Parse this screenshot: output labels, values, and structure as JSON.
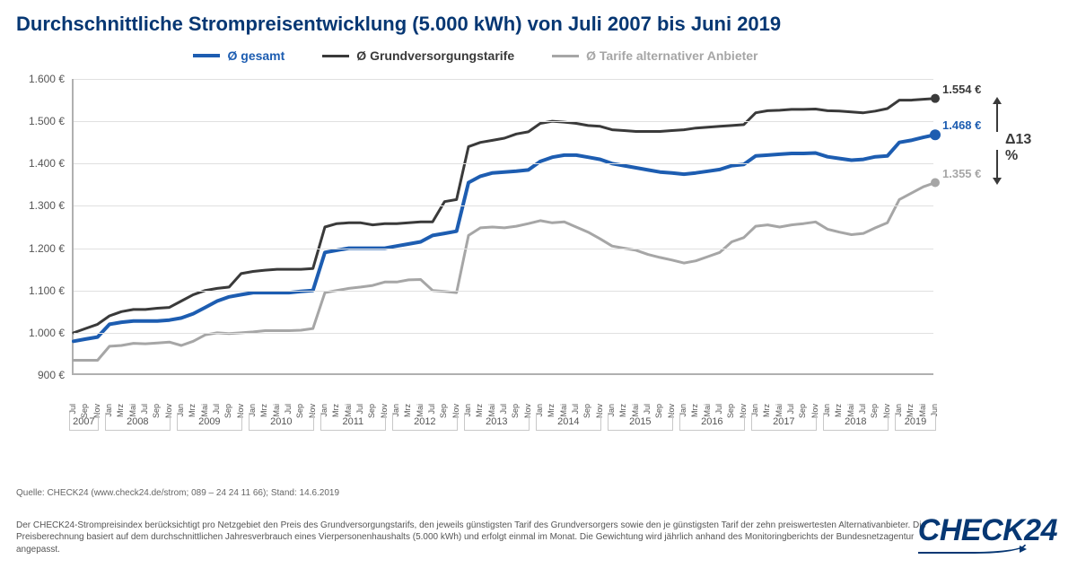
{
  "title": "Durchschnittliche Strompreisentwicklung (5.000 kWh) von Juli 2007 bis Juni 2019",
  "title_fontsize": 22,
  "title_color": "#063773",
  "legend": {
    "fontsize": 14,
    "items": [
      {
        "label": "Ø gesamt",
        "color": "#1d5db1",
        "width": 4
      },
      {
        "label": "Ø Grundversorgungstarife",
        "color": "#3a3a3a",
        "width": 3
      },
      {
        "label": "Ø Tarife alternativer Anbieter",
        "color": "#a6a6a6",
        "width": 3
      }
    ]
  },
  "chart": {
    "type": "line",
    "y_axis": {
      "min": 900,
      "max": 1600,
      "step": 100,
      "labels": [
        "900 €",
        "1.000 €",
        "1.100 €",
        "1.200 €",
        "1.300 €",
        "1.400 €",
        "1.500 €",
        "1.600 €"
      ]
    },
    "x_months": [
      "Jul",
      "Sep",
      "Nov",
      "Jan",
      "Mrz",
      "Mai",
      "Jul",
      "Sep",
      "Nov",
      "Jan",
      "Mrz",
      "Mai",
      "Jul",
      "Sep",
      "Nov",
      "Jan",
      "Mrz",
      "Mai",
      "Jul",
      "Sep",
      "Nov",
      "Jan",
      "Mrz",
      "Mai",
      "Jul",
      "Sep",
      "Nov",
      "Jan",
      "Mrz",
      "Mai",
      "Jul",
      "Sep",
      "Nov",
      "Jan",
      "Mrz",
      "Mai",
      "Jul",
      "Sep",
      "Nov",
      "Jan",
      "Mrz",
      "Mai",
      "Jul",
      "Sep",
      "Nov",
      "Jan",
      "Mrz",
      "Mai",
      "Jul",
      "Sep",
      "Nov",
      "Jan",
      "Mrz",
      "Mai",
      "Jul",
      "Sep",
      "Nov",
      "Jan",
      "Mrz",
      "Mai",
      "Jul",
      "Sep",
      "Nov",
      "Jan",
      "Mrz",
      "Mai",
      "Jul",
      "Sep",
      "Nov",
      "Jan",
      "Mrz",
      "Mai",
      "Jun"
    ],
    "x_years": [
      {
        "label": "2007",
        "span": 3
      },
      {
        "label": "2008",
        "span": 6
      },
      {
        "label": "2009",
        "span": 6
      },
      {
        "label": "2010",
        "span": 6
      },
      {
        "label": "2011",
        "span": 6
      },
      {
        "label": "2012",
        "span": 6
      },
      {
        "label": "2013",
        "span": 6
      },
      {
        "label": "2014",
        "span": 6
      },
      {
        "label": "2015",
        "span": 6
      },
      {
        "label": "2016",
        "span": 6
      },
      {
        "label": "2017",
        "span": 6
      },
      {
        "label": "2018",
        "span": 6
      },
      {
        "label": "2019",
        "span": 4
      }
    ],
    "grid_color": "#e0e0e0",
    "axis_color": "#b0b0b0",
    "background_color": "#ffffff",
    "series": [
      {
        "name": "Ø Grundversorgungstarife",
        "color": "#3a3a3a",
        "width": 3,
        "end_label": "1.554 €",
        "end_marker_radius": 5,
        "values": [
          1000,
          1010,
          1020,
          1040,
          1050,
          1055,
          1055,
          1058,
          1060,
          1075,
          1090,
          1100,
          1105,
          1108,
          1140,
          1145,
          1148,
          1150,
          1150,
          1150,
          1152,
          1250,
          1258,
          1260,
          1260,
          1255,
          1258,
          1258,
          1260,
          1262,
          1262,
          1310,
          1315,
          1440,
          1450,
          1455,
          1460,
          1470,
          1475,
          1495,
          1500,
          1498,
          1495,
          1490,
          1488,
          1480,
          1478,
          1476,
          1476,
          1476,
          1478,
          1480,
          1484,
          1486,
          1488,
          1490,
          1492,
          1520,
          1525,
          1526,
          1528,
          1528,
          1529,
          1525,
          1524,
          1522,
          1520,
          1524,
          1530,
          1550,
          1550,
          1552,
          1554
        ]
      },
      {
        "name": "Ø gesamt",
        "color": "#1d5db1",
        "width": 4,
        "end_label": "1.468 €",
        "end_marker_radius": 6,
        "values": [
          980,
          985,
          990,
          1020,
          1025,
          1028,
          1028,
          1028,
          1030,
          1035,
          1045,
          1060,
          1075,
          1085,
          1090,
          1095,
          1095,
          1095,
          1095,
          1098,
          1100,
          1190,
          1195,
          1200,
          1200,
          1200,
          1200,
          1205,
          1210,
          1215,
          1230,
          1235,
          1240,
          1355,
          1370,
          1378,
          1380,
          1382,
          1385,
          1405,
          1415,
          1420,
          1420,
          1415,
          1410,
          1400,
          1395,
          1390,
          1385,
          1380,
          1378,
          1375,
          1378,
          1382,
          1386,
          1395,
          1398,
          1418,
          1420,
          1422,
          1424,
          1424,
          1425,
          1416,
          1412,
          1408,
          1410,
          1416,
          1418,
          1450,
          1455,
          1462,
          1468
        ]
      },
      {
        "name": "Ø Tarife alternativer Anbieter",
        "color": "#a6a6a6",
        "width": 3,
        "end_label": "1.355 €",
        "end_marker_radius": 5,
        "values": [
          935,
          935,
          935,
          968,
          970,
          975,
          974,
          976,
          978,
          970,
          980,
          995,
          1000,
          998,
          1000,
          1002,
          1005,
          1005,
          1005,
          1006,
          1010,
          1095,
          1100,
          1105,
          1108,
          1112,
          1120,
          1120,
          1125,
          1126,
          1100,
          1098,
          1095,
          1230,
          1248,
          1250,
          1248,
          1252,
          1258,
          1265,
          1260,
          1262,
          1250,
          1238,
          1222,
          1205,
          1200,
          1195,
          1185,
          1178,
          1172,
          1165,
          1170,
          1180,
          1190,
          1215,
          1225,
          1252,
          1255,
          1250,
          1255,
          1258,
          1262,
          1245,
          1238,
          1232,
          1235,
          1248,
          1260,
          1315,
          1330,
          1345,
          1355
        ]
      }
    ],
    "delta_annotation": {
      "text": "Δ13 %",
      "color": "#3a3a3a",
      "fontsize": 16
    }
  },
  "source_line": "Quelle: CHECK24 (www.check24.de/strom; 089 – 24 24 11 66); Stand: 14.6.2019",
  "footnote": "Der CHECK24-Strompreisindex berücksichtigt pro Netzgebiet den Preis des Grundversorgungstarifs, den jeweils günstigsten Tarif des Grundversorgers sowie den je günstigsten Tarif der zehn preiswertesten Alternativanbieter. Die Preisberechnung basiert auf dem durchschnittlichen Jahresverbrauch eines Vierpersonenhaushalts (5.000 kWh) und erfolgt einmal im Monat. Die Gewichtung wird jährlich anhand des Monitoringberichts der Bundesnetzagentur angepasst.",
  "logo": {
    "text": "CHECK24",
    "color": "#063773"
  }
}
